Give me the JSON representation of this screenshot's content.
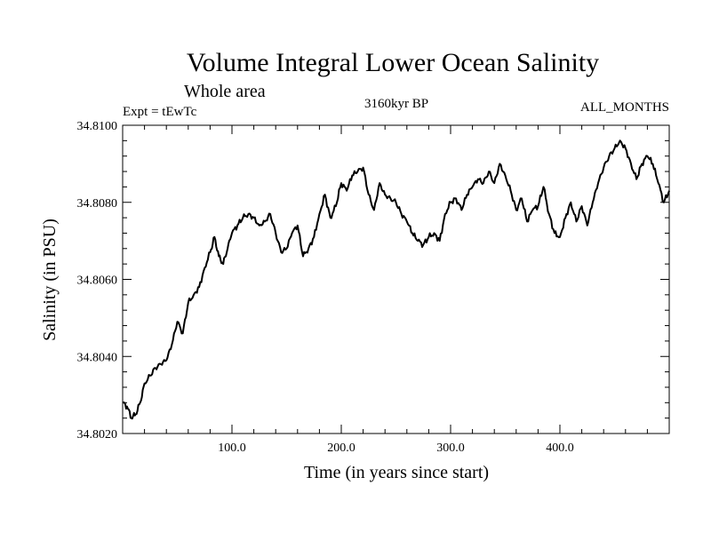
{
  "chart_data": {
    "type": "line",
    "title": "Volume Integral Lower Ocean Salinity",
    "subtitle": "Whole area",
    "experiment": "Expt = tEwTc",
    "period": "3160kyr BP",
    "months": "ALL_MONTHS",
    "xlabel": "Time (in years since start)",
    "ylabel": "Salinity (in PSU)",
    "xlim": [
      0,
      500
    ],
    "ylim": [
      34.802,
      34.81
    ],
    "x_ticks": [
      100,
      200,
      300,
      400
    ],
    "x_tick_labels": [
      "100.0",
      "200.0",
      "300.0",
      "400.0"
    ],
    "y_ticks": [
      34.802,
      34.804,
      34.806,
      34.808,
      34.81
    ],
    "y_tick_labels": [
      "34.8020",
      "34.8040",
      "34.8060",
      "34.8080",
      "34.8100"
    ],
    "series": [
      {
        "name": "Salinity",
        "color": "#000000",
        "anchors": [
          [
            0,
            34.8028
          ],
          [
            4,
            34.8027
          ],
          [
            8,
            34.8024
          ],
          [
            12,
            34.8025
          ],
          [
            16,
            34.8028
          ],
          [
            20,
            34.8033
          ],
          [
            25,
            34.8035
          ],
          [
            30,
            34.8037
          ],
          [
            35,
            34.8038
          ],
          [
            40,
            34.8039
          ],
          [
            45,
            34.8043
          ],
          [
            50,
            34.8049
          ],
          [
            55,
            34.8046
          ],
          [
            60,
            34.8054
          ],
          [
            65,
            34.8056
          ],
          [
            70,
            34.8058
          ],
          [
            75,
            34.8063
          ],
          [
            80,
            34.8067
          ],
          [
            84,
            34.8071
          ],
          [
            88,
            34.8066
          ],
          [
            92,
            34.8064
          ],
          [
            96,
            34.8068
          ],
          [
            100,
            34.8072
          ],
          [
            105,
            34.8074
          ],
          [
            110,
            34.8076
          ],
          [
            115,
            34.8077
          ],
          [
            120,
            34.8076
          ],
          [
            125,
            34.8074
          ],
          [
            130,
            34.8075
          ],
          [
            135,
            34.8077
          ],
          [
            140,
            34.8072
          ],
          [
            145,
            34.8067
          ],
          [
            150,
            34.8068
          ],
          [
            155,
            34.8072
          ],
          [
            160,
            34.8074
          ],
          [
            165,
            34.8066
          ],
          [
            170,
            34.8068
          ],
          [
            175,
            34.8071
          ],
          [
            180,
            34.8077
          ],
          [
            185,
            34.8082
          ],
          [
            190,
            34.8076
          ],
          [
            195,
            34.8079
          ],
          [
            200,
            34.8085
          ],
          [
            205,
            34.8083
          ],
          [
            210,
            34.8087
          ],
          [
            215,
            34.8088
          ],
          [
            220,
            34.8089
          ],
          [
            225,
            34.8082
          ],
          [
            230,
            34.8078
          ],
          [
            235,
            34.8085
          ],
          [
            240,
            34.8082
          ],
          [
            245,
            34.8081
          ],
          [
            250,
            34.808
          ],
          [
            255,
            34.8077
          ],
          [
            260,
            34.8075
          ],
          [
            265,
            34.8072
          ],
          [
            270,
            34.807
          ],
          [
            275,
            34.8069
          ],
          [
            280,
            34.8071
          ],
          [
            285,
            34.8072
          ],
          [
            290,
            34.807
          ],
          [
            295,
            34.8077
          ],
          [
            300,
            34.808
          ],
          [
            305,
            34.8081
          ],
          [
            310,
            34.8078
          ],
          [
            315,
            34.8082
          ],
          [
            320,
            34.8084
          ],
          [
            325,
            34.8086
          ],
          [
            330,
            34.8085
          ],
          [
            335,
            34.8088
          ],
          [
            340,
            34.8085
          ],
          [
            345,
            34.809
          ],
          [
            350,
            34.8087
          ],
          [
            355,
            34.8083
          ],
          [
            360,
            34.8078
          ],
          [
            365,
            34.8081
          ],
          [
            370,
            34.8075
          ],
          [
            375,
            34.8078
          ],
          [
            380,
            34.8079
          ],
          [
            385,
            34.8084
          ],
          [
            390,
            34.8077
          ],
          [
            395,
            34.8072
          ],
          [
            400,
            34.8071
          ],
          [
            405,
            34.8076
          ],
          [
            410,
            34.808
          ],
          [
            415,
            34.8075
          ],
          [
            420,
            34.8079
          ],
          [
            425,
            34.8074
          ],
          [
            430,
            34.808
          ],
          [
            435,
            34.8085
          ],
          [
            440,
            34.8089
          ],
          [
            445,
            34.8092
          ],
          [
            450,
            34.8094
          ],
          [
            455,
            34.8096
          ],
          [
            460,
            34.8094
          ],
          [
            465,
            34.809
          ],
          [
            470,
            34.8086
          ],
          [
            475,
            34.809
          ],
          [
            480,
            34.8092
          ],
          [
            485,
            34.809
          ],
          [
            490,
            34.8085
          ],
          [
            495,
            34.808
          ],
          [
            500,
            34.8083
          ]
        ]
      }
    ]
  }
}
